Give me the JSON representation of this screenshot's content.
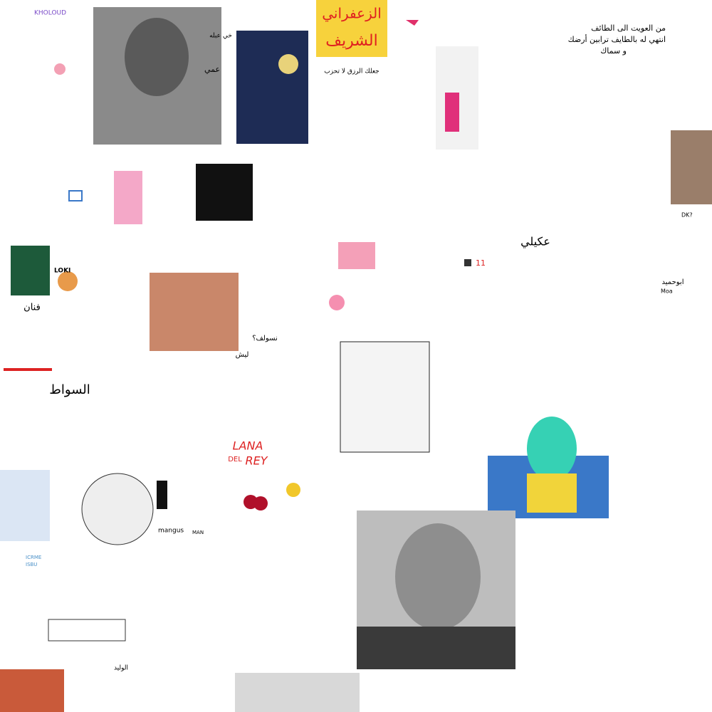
{
  "canvas": {
    "kholoud": "KHOLOUD",
    "uncle": "عمي",
    "khi": "خي عبله",
    "zaafarani": "الزعفراني",
    "sharif": "الشريف",
    "rizq": "جعلك الرزق لا تحزب",
    "taif": [
      "من العويت الى الطائف",
      "انتهي له بالطايف ترابين أرضك",
      "و سماك"
    ],
    "loki": "LOKI",
    "fannan": "فنان",
    "sawat": "السواط",
    "nsolf": "نسولف؟",
    "laysh": "ليش",
    "akeli": "عكيلي",
    "abuhmaid": "ابوحميد",
    "moa": "Moa",
    "dk": "DK?",
    "mangus": "mangus",
    "man": "MAN",
    "icrme": "ICRME",
    "isbu": "ISBU",
    "lana": "LANA",
    "del": "DEL",
    "rey": "REY",
    "waleed": "الوليد",
    "eleven": "11"
  }
}
